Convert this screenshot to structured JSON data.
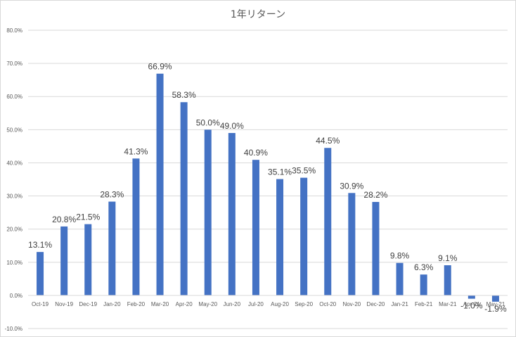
{
  "chart_data": {
    "type": "bar",
    "title": "1年リターン",
    "xlabel": "",
    "ylabel": "",
    "categories": [
      "Oct-19",
      "Nov-19",
      "Dec-19",
      "Jan-20",
      "Feb-20",
      "Mar-20",
      "Apr-20",
      "May-20",
      "Jun-20",
      "Jul-20",
      "Aug-20",
      "Sep-20",
      "Oct-20",
      "Nov-20",
      "Dec-20",
      "Jan-21",
      "Feb-21",
      "Mar-21",
      "Apr-21",
      "May-21"
    ],
    "values": [
      13.1,
      20.8,
      21.5,
      28.3,
      41.3,
      66.9,
      58.3,
      50.0,
      49.0,
      40.9,
      35.1,
      35.5,
      44.5,
      30.9,
      28.2,
      9.8,
      6.3,
      9.1,
      -1.0,
      -1.9
    ],
    "data_labels": [
      "13.1%",
      "20.8%",
      "21.5%",
      "28.3%",
      "41.3%",
      "66.9%",
      "58.3%",
      "50.0%",
      "49.0%",
      "40.9%",
      "35.1%",
      "35.5%",
      "44.5%",
      "30.9%",
      "28.2%",
      "9.8%",
      "6.3%",
      "9.1%",
      "-1.0%",
      "-1.9%"
    ],
    "ylim": [
      -10,
      80
    ],
    "yticks": [
      -10,
      0,
      10,
      20,
      30,
      40,
      50,
      60,
      70,
      80
    ],
    "ytick_labels": [
      "-10.0%",
      "0.0%",
      "10.0%",
      "20.0%",
      "30.0%",
      "40.0%",
      "50.0%",
      "60.0%",
      "70.0%",
      "80.0%"
    ],
    "grid": true,
    "legend": "none",
    "bar_color": "#4472c4",
    "grid_color": "#d9d9d9"
  }
}
